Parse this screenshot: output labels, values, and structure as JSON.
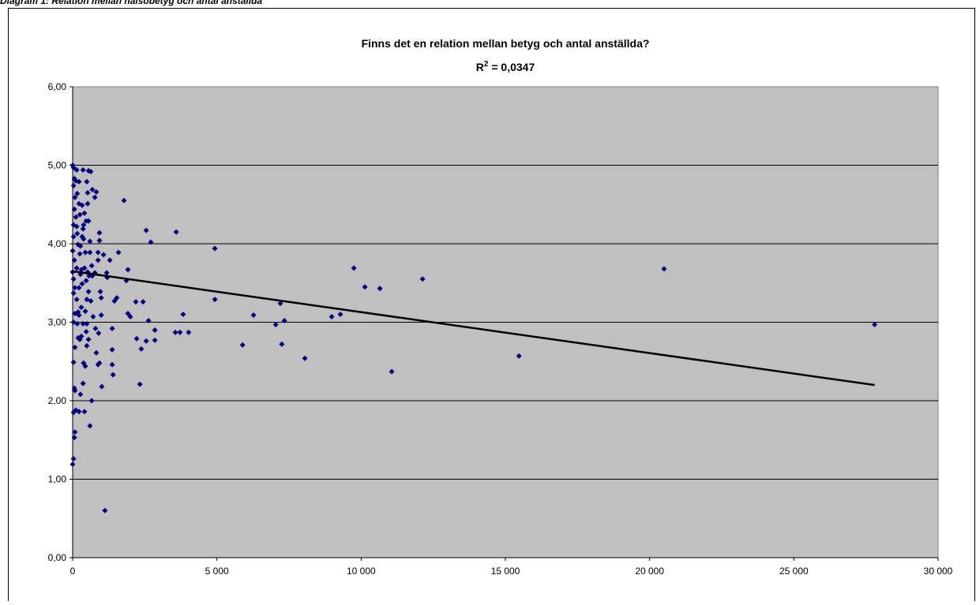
{
  "caption": "Diagram 1: Relation mellan hälsobetyg och antal anställda",
  "chart_data": {
    "type": "scatter",
    "title": "Finns det en relation mellan betyg och antal anställda?",
    "r_squared": {
      "base": "R",
      "sup": "2",
      "rest": " = 0,0347"
    },
    "color": "#000080",
    "plot_background": "#c0c0c0",
    "grid": true,
    "xlim": [
      0,
      30000
    ],
    "ylim": [
      0,
      6
    ],
    "xticks": [
      0,
      {
        "value": 5000,
        "label": "5 000"
      },
      {
        "value": 10000,
        "label": "10 000"
      },
      {
        "value": 15000,
        "label": "15 000"
      },
      {
        "value": 20000,
        "label": "20 000"
      },
      {
        "value": 25000,
        "label": "25 000"
      },
      {
        "value": 30000,
        "label": "30 000"
      }
    ],
    "yticks": [
      {
        "value": 0,
        "label": "0,00"
      },
      {
        "value": 1,
        "label": "1,00"
      },
      {
        "value": 2,
        "label": "2,00"
      },
      {
        "value": 3,
        "label": "3,00"
      },
      {
        "value": 4,
        "label": "4,00"
      },
      {
        "value": 5,
        "label": "5,00"
      },
      {
        "value": 6,
        "label": "6,00"
      }
    ],
    "x": [
      27800,
      20500,
      15470,
      12130,
      11060,
      10650,
      10130,
      9750,
      9280,
      8980,
      8050,
      7200,
      7340,
      7250,
      7040,
      6270,
      5890,
      4930,
      4930,
      4020,
      3830,
      3720,
      3560,
      3590,
      2710,
      2550,
      2850,
      2850,
      2630,
      2550,
      2440,
      2380,
      2190,
      2220,
      2330,
      1780,
      1916,
      1860,
      1916,
      2000,
      1590,
      1530,
      1450,
      1370,
      1370,
      1370,
      1400,
      1290,
      1200,
      1180,
      1120,
      1010,
      1070,
      990,
      960,
      990,
      900,
      930,
      880,
      930,
      930,
      880,
      820,
      770,
      880,
      790,
      820,
      684,
      630,
      550,
      600,
      660,
      680,
      770,
      630,
      710,
      660,
      600,
      520,
      490,
      520,
      470,
      550,
      490,
      520,
      470,
      490,
      410,
      360,
      440,
      380,
      360,
      380,
      330,
      360,
      330,
      360,
      300,
      270,
      250,
      270,
      270,
      220,
      250,
      220,
      220,
      190,
      190,
      160,
      140,
      140,
      160,
      110,
      80,
      110,
      110,
      80,
      80,
      60,
      30,
      0,
      30,
      30,
      30,
      30,
      0,
      0,
      30,
      60,
      30,
      60,
      30,
      30,
      0,
      60,
      80,
      80,
      80,
      60,
      30,
      140,
      160,
      140,
      190,
      220,
      220,
      250,
      300,
      300,
      330,
      380,
      410,
      440,
      410,
      440,
      470,
      490,
      550,
      550,
      570,
      600
    ],
    "y": [
      2.97,
      3.68,
      2.57,
      3.55,
      2.37,
      3.43,
      3.45,
      3.69,
      3.1,
      3.07,
      2.54,
      3.24,
      3.02,
      2.72,
      2.97,
      3.09,
      2.71,
      3.94,
      3.29,
      2.87,
      3.1,
      2.87,
      2.87,
      4.15,
      4.02,
      4.17,
      2.9,
      2.77,
      3.02,
      2.76,
      3.26,
      2.66,
      3.26,
      2.79,
      2.21,
      4.55,
      3.67,
      3.53,
      3.11,
      3.07,
      3.89,
      3.31,
      3.27,
      2.92,
      2.65,
      2.46,
      2.33,
      3.79,
      3.57,
      3.63,
      0.6,
      2.18,
      3.86,
      3.09,
      3.39,
      3.31,
      2.86,
      2.48,
      2.46,
      4.04,
      4.14,
      3.79,
      4.66,
      4.59,
      3.89,
      2.92,
      2.61,
      4.69,
      4.92,
      4.93,
      4.03,
      3.72,
      3.59,
      3.63,
      3.27,
      3.07,
      2.0,
      1.68,
      4.51,
      4.79,
      4.65,
      4.29,
      4.29,
      3.29,
      3.64,
      2.88,
      2.7,
      1.86,
      2.22,
      2.44,
      2.48,
      4.94,
      4.06,
      4.49,
      4.19,
      3.49,
      2.98,
      2.82,
      3.97,
      3.87,
      3.61,
      2.08,
      1.86,
      4.37,
      4.79,
      4.51,
      3.13,
      2.8,
      2.98,
      3.29,
      3.69,
      4.13,
      4.8,
      4.59,
      4.34,
      1.88,
      2.13,
      1.6,
      1.53,
      1.26,
      1.19,
      2.49,
      3.0,
      3.37,
      3.55,
      3.64,
      5.0,
      4.97,
      4.83,
      4.74,
      4.44,
      4.24,
      4.09,
      3.91,
      3.79,
      3.44,
      3.11,
      2.68,
      2.16,
      1.85,
      4.94,
      4.64,
      4.22,
      3.99,
      3.44,
      3.09,
      2.78,
      3.19,
      3.67,
      4.09,
      4.24,
      4.39,
      3.89,
      3.69,
      3.14,
      3.53,
      2.98,
      3.39,
      2.78,
      3.59,
      3.89
    ],
    "trendline": {
      "color": "#000000",
      "x": [
        0,
        27800
      ],
      "y": [
        3.65,
        2.2
      ]
    }
  }
}
